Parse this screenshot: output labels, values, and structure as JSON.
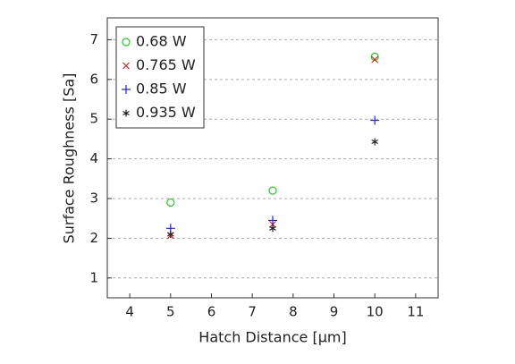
{
  "chart_data": {
    "type": "scatter",
    "x_label": "Hatch Distance [μm]",
    "y_label": "Surface Roughness [Sa]",
    "x": [
      5,
      7.5,
      10
    ],
    "series": [
      {
        "name": "0.68 W",
        "color": "#22cc22",
        "marker": "circle",
        "values": [
          2.9,
          3.2,
          6.57
        ]
      },
      {
        "name": "0.765 W",
        "color": "#dd2222",
        "marker": "x",
        "values": [
          2.07,
          2.35,
          6.5
        ]
      },
      {
        "name": "0.85 W",
        "color": "#2222dd",
        "marker": "plus",
        "values": [
          2.25,
          2.45,
          4.97
        ]
      },
      {
        "name": "0.935 W",
        "color": "#222222",
        "marker": "star",
        "values": [
          2.1,
          2.25,
          4.43
        ]
      }
    ],
    "xlim": [
      3.45,
      11.55
    ],
    "xticks": [
      4,
      5,
      6,
      7,
      8,
      9,
      10,
      11
    ],
    "ylim": [
      0.5,
      7.55
    ],
    "yticks": [
      1,
      2,
      3,
      4,
      5,
      6,
      7
    ],
    "grid": true,
    "legend": "upper-left"
  }
}
